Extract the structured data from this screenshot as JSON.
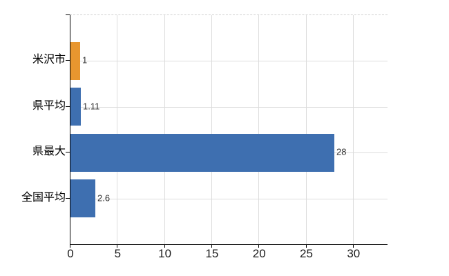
{
  "chart_data": {
    "type": "bar",
    "orientation": "horizontal",
    "title": "",
    "xlabel": "",
    "ylabel": "",
    "categories": [
      "米沢市",
      "県平均",
      "県最大",
      "全国平均"
    ],
    "values": [
      1,
      1.11,
      28,
      2.6
    ],
    "value_labels": [
      "1",
      "1.11",
      "28",
      "2.6"
    ],
    "bar_colors": [
      "#E8962F",
      "#3E6FB0",
      "#3E6FB0",
      "#3E6FB0"
    ],
    "xlim": [
      0,
      33.6
    ],
    "x_ticks": [
      0,
      5,
      10,
      15,
      20,
      25,
      30
    ],
    "grid": true,
    "legend": "none"
  },
  "colors": {
    "background": "#FFFFFF",
    "axis": "#000000",
    "grid": "#DCDCDC",
    "plot_top_border": "#D0D0D0",
    "tick_label": "#1A1A1A",
    "category_label": "#000000",
    "value_label": "#333333"
  }
}
